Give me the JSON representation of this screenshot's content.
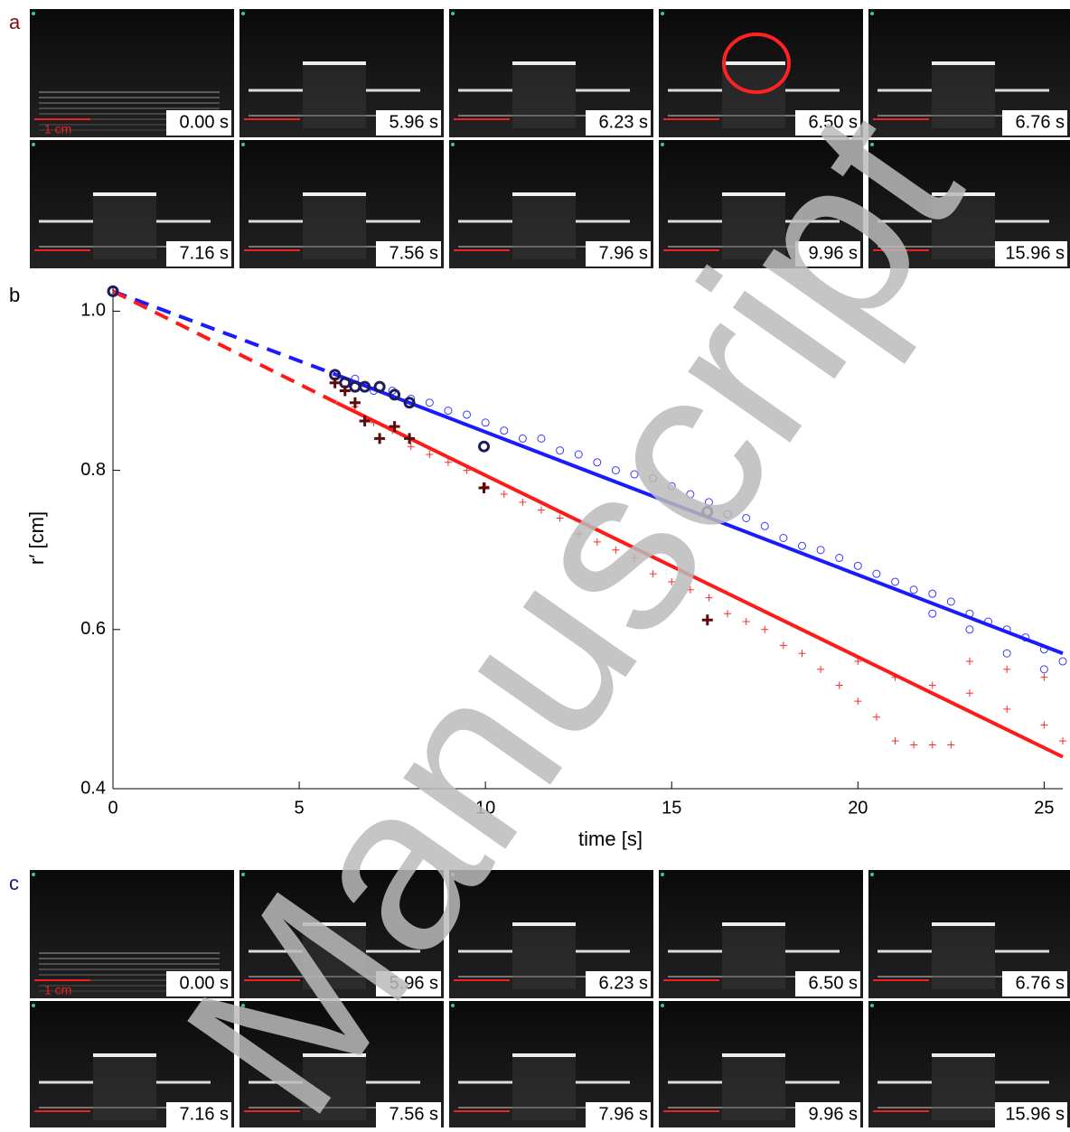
{
  "panels": {
    "a": {
      "label": "a",
      "scale_label": "1 cm",
      "frames": [
        "0.00 s",
        "5.96 s",
        "6.23 s",
        "6.50 s",
        "6.76 s",
        "7.16 s",
        "7.56 s",
        "7.96 s",
        "9.96 s",
        "15.96 s"
      ]
    },
    "c": {
      "label": "c",
      "scale_label": "1 cm",
      "frames": [
        "0.00 s",
        "5.96 s",
        "6.23 s",
        "6.50 s",
        "6.76 s",
        "7.16 s",
        "7.56 s",
        "7.96 s",
        "9.96 s",
        "15.96 s"
      ]
    }
  },
  "watermark": "Manuscript",
  "chart_data": {
    "type": "scatter",
    "label": "b",
    "x_label": "time [s]",
    "y_label": "r′ [cm]",
    "xlim": [
      0,
      25.5
    ],
    "ylim": [
      0.4,
      1.03
    ],
    "xticks": [
      0,
      5,
      10,
      15,
      20,
      25
    ],
    "yticks": [
      0.4,
      0.6,
      0.8,
      {
        "value": 1,
        "label": "1.0"
      }
    ],
    "series": [
      {
        "marker": "circle",
        "color": "#3a3aff",
        "x": [
          6.5,
          7,
          7.5,
          8,
          8.5,
          9,
          9.5,
          10,
          10.5,
          11,
          11.5,
          12,
          12.5,
          13,
          13.5,
          14,
          14.5,
          15,
          15.5,
          16,
          16.5,
          17,
          17.5,
          18,
          18.5,
          19,
          19.5,
          20,
          20.5,
          21,
          21.5,
          22,
          22.5,
          23,
          23.5,
          24,
          24.5,
          25,
          25.5,
          22,
          23,
          24,
          25
        ],
        "values": [
          0.915,
          0.9,
          0.9,
          0.89,
          0.885,
          0.875,
          0.87,
          0.86,
          0.85,
          0.84,
          0.84,
          0.825,
          0.82,
          0.81,
          0.8,
          0.795,
          0.79,
          0.78,
          0.77,
          0.76,
          0.745,
          0.74,
          0.73,
          0.715,
          0.705,
          0.7,
          0.69,
          0.68,
          0.67,
          0.66,
          0.65,
          0.645,
          0.635,
          0.62,
          0.61,
          0.6,
          0.59,
          0.575,
          0.56,
          0.62,
          0.6,
          0.57,
          0.55
        ]
      },
      {
        "marker": "plus",
        "color": "#ff2a2a",
        "x": [
          6.5,
          7,
          7.5,
          8,
          8.5,
          9,
          9.5,
          10,
          10.5,
          11,
          11.5,
          12,
          12.5,
          13,
          13.5,
          14,
          14.5,
          15,
          15.5,
          16,
          16.5,
          17,
          17.5,
          18,
          18.5,
          19,
          19.5,
          20,
          20.5,
          21,
          21.5,
          22,
          22.5,
          20,
          21,
          22,
          23,
          24,
          25,
          25.5,
          23,
          24,
          25
        ],
        "values": [
          0.88,
          0.86,
          0.85,
          0.83,
          0.82,
          0.81,
          0.8,
          0.78,
          0.77,
          0.76,
          0.75,
          0.74,
          0.72,
          0.71,
          0.7,
          0.69,
          0.67,
          0.66,
          0.65,
          0.64,
          0.62,
          0.61,
          0.6,
          0.58,
          0.57,
          0.55,
          0.53,
          0.51,
          0.49,
          0.46,
          0.455,
          0.455,
          0.455,
          0.56,
          0.54,
          0.53,
          0.52,
          0.5,
          0.48,
          0.46,
          0.56,
          0.55,
          0.54
        ]
      },
      {
        "marker": "line",
        "dashed": true,
        "color": "#1a1aff",
        "x": [
          0,
          6
        ],
        "values": [
          1.025,
          0.92
        ]
      },
      {
        "marker": "line",
        "color": "#1a1aff",
        "x": [
          6,
          25.5
        ],
        "values": [
          0.92,
          0.57
        ]
      },
      {
        "marker": "line",
        "dashed": true,
        "color": "#ff1a1a",
        "x": [
          0,
          6
        ],
        "values": [
          1.025,
          0.885
        ]
      },
      {
        "marker": "line",
        "color": "#ff1a1a",
        "x": [
          6,
          25.5
        ],
        "values": [
          0.885,
          0.44
        ]
      },
      {
        "marker": "big-circle",
        "color": "#1c1c5c",
        "x": [
          0,
          5.96,
          6.23,
          6.5,
          6.76,
          7.16,
          7.56,
          7.96,
          9.96,
          15.96
        ],
        "values": [
          1.025,
          0.92,
          0.91,
          0.905,
          0.905,
          0.905,
          0.895,
          0.885,
          0.83,
          0.748
        ]
      },
      {
        "marker": "big-plus",
        "color": "#5a0c0c",
        "x": [
          5.96,
          6.23,
          6.5,
          6.76,
          7.16,
          7.56,
          7.96,
          9.96,
          15.96
        ],
        "values": [
          0.91,
          0.9,
          0.885,
          0.862,
          0.84,
          0.855,
          0.84,
          0.778,
          0.612
        ]
      }
    ]
  }
}
